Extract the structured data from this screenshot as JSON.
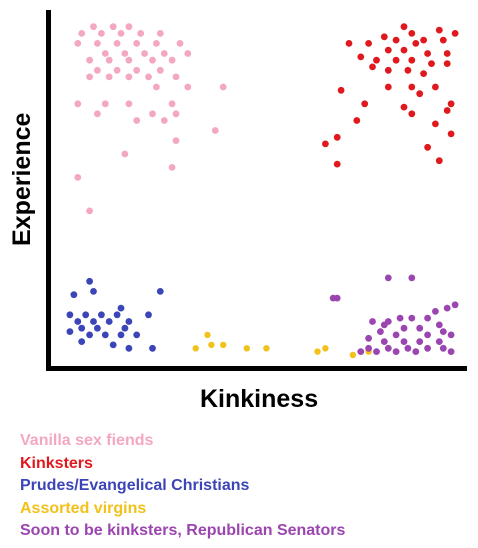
{
  "chart_data": {
    "type": "scatter",
    "title": "",
    "xlabel": "Kinkiness",
    "ylabel": "Experience",
    "xlim": [
      0,
      100
    ],
    "ylim": [
      0,
      100
    ],
    "grid": false,
    "tick_labels": false,
    "legend_position": "bottom-left",
    "series": [
      {
        "name": "Vanilla sex fiends",
        "color": "#f4a7c3",
        "points": [
          [
            7,
            98
          ],
          [
            12,
            98
          ],
          [
            16,
            98
          ],
          [
            4,
            96
          ],
          [
            9,
            96
          ],
          [
            14,
            96
          ],
          [
            19,
            96
          ],
          [
            24,
            96
          ],
          [
            3,
            93
          ],
          [
            8,
            93
          ],
          [
            13,
            93
          ],
          [
            18,
            93
          ],
          [
            23,
            93
          ],
          [
            29,
            93
          ],
          [
            10,
            90
          ],
          [
            15,
            90
          ],
          [
            20,
            90
          ],
          [
            25,
            90
          ],
          [
            31,
            90
          ],
          [
            6,
            88
          ],
          [
            11,
            88
          ],
          [
            16,
            88
          ],
          [
            22,
            88
          ],
          [
            27,
            88
          ],
          [
            8,
            85
          ],
          [
            13,
            85
          ],
          [
            18,
            85
          ],
          [
            24,
            85
          ],
          [
            6,
            83
          ],
          [
            11,
            83
          ],
          [
            16,
            83
          ],
          [
            21,
            83
          ],
          [
            28,
            83
          ],
          [
            23,
            80
          ],
          [
            31,
            80
          ],
          [
            40,
            80
          ],
          [
            3,
            75
          ],
          [
            10,
            75
          ],
          [
            16,
            75
          ],
          [
            27,
            75
          ],
          [
            8,
            72
          ],
          [
            22,
            72
          ],
          [
            28,
            72
          ],
          [
            18,
            70
          ],
          [
            25,
            70
          ],
          [
            38,
            67
          ],
          [
            28,
            64
          ],
          [
            15,
            60
          ],
          [
            27,
            56
          ],
          [
            3,
            53
          ],
          [
            6,
            43
          ]
        ]
      },
      {
        "name": "Kinksters",
        "color": "#e0191e",
        "points": [
          [
            86,
            98
          ],
          [
            88,
            96
          ],
          [
            95,
            97
          ],
          [
            99,
            96
          ],
          [
            81,
            95
          ],
          [
            84,
            94
          ],
          [
            91,
            94
          ],
          [
            96,
            94
          ],
          [
            72,
            93
          ],
          [
            77,
            93
          ],
          [
            89,
            93
          ],
          [
            82,
            91
          ],
          [
            86,
            91
          ],
          [
            92,
            90
          ],
          [
            97,
            90
          ],
          [
            75,
            89
          ],
          [
            79,
            88
          ],
          [
            84,
            88
          ],
          [
            88,
            88
          ],
          [
            93,
            87
          ],
          [
            97,
            87
          ],
          [
            78,
            86
          ],
          [
            82,
            85
          ],
          [
            87,
            85
          ],
          [
            91,
            84
          ],
          [
            70,
            79
          ],
          [
            82,
            80
          ],
          [
            88,
            80
          ],
          [
            94,
            80
          ],
          [
            90,
            78
          ],
          [
            98,
            75
          ],
          [
            76,
            75
          ],
          [
            86,
            74
          ],
          [
            88,
            72
          ],
          [
            97,
            73
          ],
          [
            74,
            70
          ],
          [
            94,
            69
          ],
          [
            69,
            65
          ],
          [
            66,
            63
          ],
          [
            98,
            66
          ],
          [
            92,
            62
          ],
          [
            69,
            57
          ],
          [
            95,
            58
          ]
        ]
      },
      {
        "name": "Prudes/Evangelical Christians",
        "color": "#3b45b7",
        "points": [
          [
            6,
            22
          ],
          [
            7,
            19
          ],
          [
            2,
            18
          ],
          [
            24,
            19
          ],
          [
            14,
            14
          ],
          [
            1,
            12
          ],
          [
            5,
            12
          ],
          [
            9,
            12
          ],
          [
            13,
            12
          ],
          [
            21,
            12
          ],
          [
            3,
            10
          ],
          [
            7,
            10
          ],
          [
            11,
            10
          ],
          [
            16,
            10
          ],
          [
            4,
            8
          ],
          [
            8,
            8
          ],
          [
            15,
            8
          ],
          [
            1,
            7
          ],
          [
            6,
            6
          ],
          [
            10,
            6
          ],
          [
            14,
            6
          ],
          [
            18,
            6
          ],
          [
            4,
            4
          ],
          [
            12,
            3
          ],
          [
            16,
            2
          ],
          [
            22,
            2
          ]
        ]
      },
      {
        "name": "Assorted virgins",
        "color": "#f2c11a",
        "points": [
          [
            36,
            6
          ],
          [
            37,
            3
          ],
          [
            40,
            3
          ],
          [
            33,
            2
          ],
          [
            46,
            2
          ],
          [
            51,
            2
          ],
          [
            66,
            2
          ],
          [
            64,
            1
          ],
          [
            77,
            1
          ],
          [
            73,
            0
          ]
        ]
      },
      {
        "name": "Soon to be kinksters, Republican Senators",
        "color": "#9b45b0",
        "points": [
          [
            69,
            17
          ],
          [
            68,
            17
          ],
          [
            82,
            23
          ],
          [
            88,
            23
          ],
          [
            94,
            13
          ],
          [
            97,
            14
          ],
          [
            99,
            15
          ],
          [
            92,
            11
          ],
          [
            88,
            11
          ],
          [
            85,
            11
          ],
          [
            82,
            10
          ],
          [
            78,
            10
          ],
          [
            81,
            9
          ],
          [
            86,
            8
          ],
          [
            90,
            8
          ],
          [
            95,
            9
          ],
          [
            96,
            7
          ],
          [
            80,
            7
          ],
          [
            84,
            6
          ],
          [
            92,
            6
          ],
          [
            98,
            6
          ],
          [
            77,
            5
          ],
          [
            81,
            4
          ],
          [
            86,
            4
          ],
          [
            90,
            4
          ],
          [
            95,
            4
          ],
          [
            77,
            2
          ],
          [
            82,
            2
          ],
          [
            87,
            2
          ],
          [
            92,
            2
          ],
          [
            96,
            2
          ],
          [
            75,
            1
          ],
          [
            79,
            1
          ],
          [
            84,
            1
          ],
          [
            89,
            1
          ],
          [
            98,
            1
          ]
        ]
      }
    ]
  }
}
